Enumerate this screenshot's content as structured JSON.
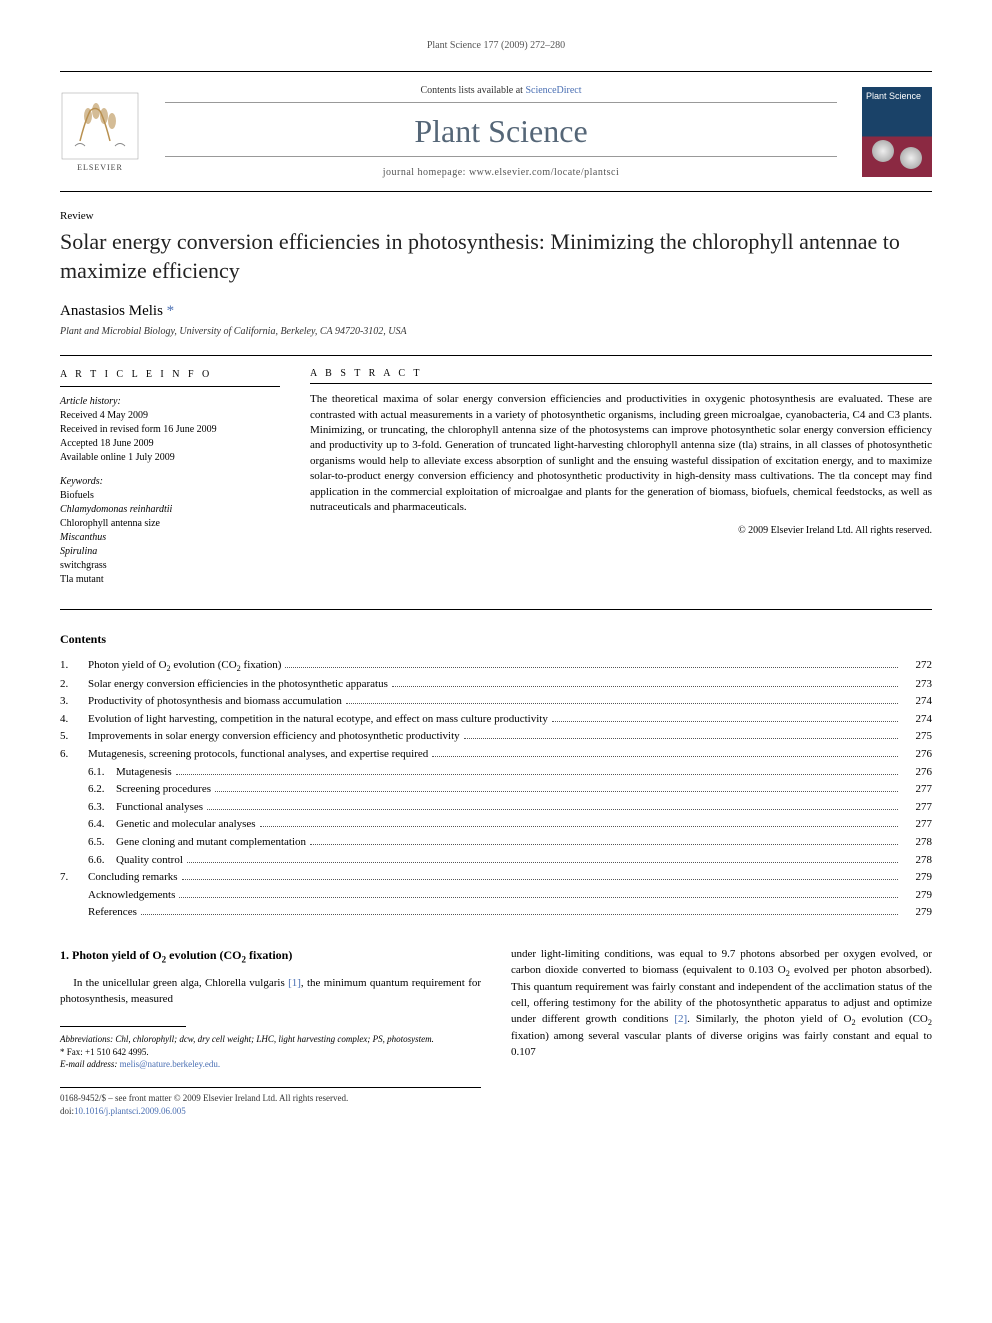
{
  "running_header": "Plant Science 177 (2009) 272–280",
  "masthead": {
    "contents_prefix": "Contents lists available at ",
    "contents_link": "ScienceDirect",
    "journal_name": "Plant Science",
    "homepage_prefix": "journal homepage: ",
    "homepage_url": "www.elsevier.com/locate/plantsci",
    "publisher_name": "ELSEVIER",
    "cover_label": "Plant Science"
  },
  "article": {
    "type": "Review",
    "title": "Solar energy conversion efficiencies in photosynthesis: Minimizing the chlorophyll antennae to maximize efficiency",
    "author_name": "Anastasios Melis",
    "author_marker": "*",
    "affiliation": "Plant and Microbial Biology, University of California, Berkeley, CA 94720-3102, USA"
  },
  "info": {
    "heading": "A R T I C L E   I N F O",
    "history_label": "Article history:",
    "history": [
      "Received 4 May 2009",
      "Received in revised form 16 June 2009",
      "Accepted 18 June 2009",
      "Available online 1 July 2009"
    ],
    "keywords_label": "Keywords:",
    "keywords": [
      "Biofuels",
      "Chlamydomonas reinhardtii",
      "Chlorophyll antenna size",
      "Miscanthus",
      "Spirulina",
      "switchgrass",
      "Tla mutant"
    ]
  },
  "abstract": {
    "heading": "A B S T R A C T",
    "text": "The theoretical maxima of solar energy conversion efficiencies and productivities in oxygenic photosynthesis are evaluated. These are contrasted with actual measurements in a variety of photosynthetic organisms, including green microalgae, cyanobacteria, C4 and C3 plants. Minimizing, or truncating, the chlorophyll antenna size of the photosystems can improve photosynthetic solar energy conversion efficiency and productivity up to 3-fold. Generation of truncated light-harvesting chlorophyll antenna size (tla) strains, in all classes of photosynthetic organisms would help to alleviate excess absorption of sunlight and the ensuing wasteful dissipation of excitation energy, and to maximize solar-to-product energy conversion efficiency and photosynthetic productivity in high-density mass cultivations. The tla concept may find application in the commercial exploitation of microalgae and plants for the generation of biomass, biofuels, chemical feedstocks, as well as nutraceuticals and pharmaceuticals.",
    "copyright": "© 2009 Elsevier Ireland Ltd. All rights reserved."
  },
  "contents": {
    "heading": "Contents",
    "items": [
      {
        "num": "1.",
        "title_html": "Photon yield of O<sub>2</sub> evolution (CO<sub>2</sub> fixation)",
        "page": "272",
        "level": 0
      },
      {
        "num": "2.",
        "title_html": "Solar energy conversion efficiencies in the photosynthetic apparatus",
        "page": "273",
        "level": 0
      },
      {
        "num": "3.",
        "title_html": "Productivity of photosynthesis and biomass accumulation",
        "page": "274",
        "level": 0
      },
      {
        "num": "4.",
        "title_html": "Evolution of light harvesting, competition in the natural ecotype, and effect on mass culture productivity",
        "page": "274",
        "level": 0
      },
      {
        "num": "5.",
        "title_html": "Improvements in solar energy conversion efficiency and photosynthetic productivity",
        "page": "275",
        "level": 0
      },
      {
        "num": "6.",
        "title_html": "Mutagenesis, screening protocols, functional analyses, and expertise required",
        "page": "276",
        "level": 0
      },
      {
        "num": "6.1.",
        "title_html": "Mutagenesis",
        "page": "276",
        "level": 1
      },
      {
        "num": "6.2.",
        "title_html": "Screening procedures",
        "page": "277",
        "level": 1
      },
      {
        "num": "6.3.",
        "title_html": "Functional analyses",
        "page": "277",
        "level": 1
      },
      {
        "num": "6.4.",
        "title_html": "Genetic and molecular analyses",
        "page": "277",
        "level": 1
      },
      {
        "num": "6.5.",
        "title_html": "Gene cloning and mutant complementation",
        "page": "278",
        "level": 1
      },
      {
        "num": "6.6.",
        "title_html": "Quality control",
        "page": "278",
        "level": 1
      },
      {
        "num": "7.",
        "title_html": "Concluding remarks",
        "page": "279",
        "level": 0
      },
      {
        "num": "",
        "title_html": "Acknowledgements",
        "page": "279",
        "level": 0
      },
      {
        "num": "",
        "title_html": "References",
        "page": "279",
        "level": 0
      }
    ]
  },
  "body": {
    "section_heading_html": "1. Photon yield of O<sub>2</sub> evolution (CO<sub>2</sub> fixation)",
    "col1_html": "In the unicellular green alga, <span class=\"italic\">Chlorella vulgaris</span> <a href=\"#\">[1]</a>, the minimum quantum requirement for photosynthesis, measured",
    "col2_html": "under light-limiting conditions, was equal to 9.7 photons absorbed per oxygen evolved, or carbon dioxide converted to biomass (equivalent to 0.103 O<sub>2</sub> evolved per photon absorbed). This quantum requirement was fairly constant and independent of the acclimation status of the cell, offering testimony for the ability of the photosynthetic apparatus to adjust and optimize under different growth conditions <a href=\"#\">[2]</a>. Similarly, the photon yield of O<sub>2</sub> evolution (CO<sub>2</sub> fixation) among several vascular plants of diverse origins was fairly constant and equal to 0.107"
  },
  "footnotes": {
    "abbrev": "Abbreviations: Chl, chlorophyll; dcw, dry cell weight; LHC, light harvesting complex; PS, photosystem.",
    "corr": "* Fax: +1 510 642 4995.",
    "email_label": "E-mail address: ",
    "email": "melis@nature.berkeley.edu."
  },
  "footer": {
    "line1": "0168-9452/$ – see front matter © 2009 Elsevier Ireland Ltd. All rights reserved.",
    "doi_prefix": "doi:",
    "doi": "10.1016/j.plantsci.2009.06.005"
  }
}
